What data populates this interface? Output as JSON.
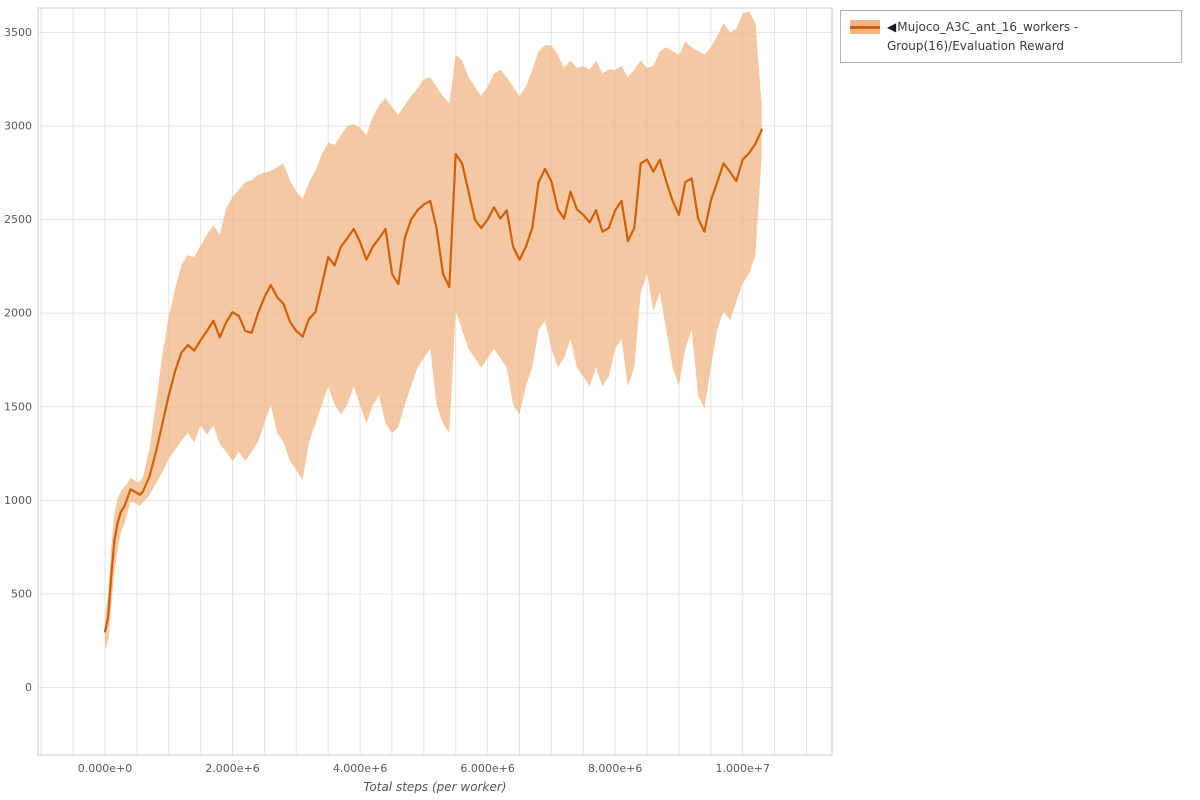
{
  "chart_data": {
    "type": "line",
    "title": "",
    "xlabel": "Total steps (per worker)",
    "ylabel": "",
    "x_scale": 1000000,
    "xlim_millions": [
      -1.05,
      11.4
    ],
    "ylim": [
      -360,
      3630
    ],
    "grid": {
      "on": true,
      "x_minor_step_millions": 0.5,
      "y_minor_step": 500,
      "color": "#e4e4e4"
    },
    "x_ticks": [
      {
        "v": 0,
        "label": "0.000e+0"
      },
      {
        "v": 2,
        "label": "2.000e+6"
      },
      {
        "v": 4,
        "label": "4.000e+6"
      },
      {
        "v": 6,
        "label": "6.000e+6"
      },
      {
        "v": 8,
        "label": "8.000e+6"
      },
      {
        "v": 10,
        "label": "1.000e+7"
      }
    ],
    "y_ticks": [
      {
        "v": 0,
        "label": "0"
      },
      {
        "v": 500,
        "label": "500"
      },
      {
        "v": 1000,
        "label": "1000"
      },
      {
        "v": 1500,
        "label": "1500"
      },
      {
        "v": 2000,
        "label": "2000"
      },
      {
        "v": 2500,
        "label": "2500"
      },
      {
        "v": 3000,
        "label": "3000"
      },
      {
        "v": 3500,
        "label": "3500"
      }
    ],
    "legend_position": "outside-top-right",
    "series": [
      {
        "name": "Mujoco_A3C_ant_16_workers - Group(16)/Evaluation Reward",
        "line_color": "#d2600a",
        "band_color": "#f0b584",
        "band_opacity": 0.75,
        "points": [
          [
            0.0,
            300,
            200,
            390
          ],
          [
            0.05,
            380,
            250,
            500
          ],
          [
            0.1,
            600,
            430,
            760
          ],
          [
            0.15,
            790,
            620,
            930
          ],
          [
            0.2,
            880,
            740,
            1010
          ],
          [
            0.25,
            940,
            830,
            1050
          ],
          [
            0.3,
            965,
            870,
            1070
          ],
          [
            0.35,
            1010,
            930,
            1090
          ],
          [
            0.4,
            1060,
            990,
            1120
          ],
          [
            0.45,
            1050,
            990,
            1110
          ],
          [
            0.5,
            1040,
            980,
            1100
          ],
          [
            0.55,
            1030,
            970,
            1100
          ],
          [
            0.6,
            1050,
            990,
            1130
          ],
          [
            0.7,
            1130,
            1030,
            1280
          ],
          [
            0.8,
            1260,
            1090,
            1520
          ],
          [
            0.9,
            1410,
            1150,
            1780
          ],
          [
            1.0,
            1560,
            1220,
            1980
          ],
          [
            1.1,
            1690,
            1270,
            2130
          ],
          [
            1.2,
            1790,
            1320,
            2260
          ],
          [
            1.3,
            1830,
            1360,
            2310
          ],
          [
            1.4,
            1800,
            1310,
            2300
          ],
          [
            1.5,
            1855,
            1400,
            2360
          ],
          [
            1.6,
            1905,
            1350,
            2420
          ],
          [
            1.7,
            1960,
            1400,
            2470
          ],
          [
            1.8,
            1870,
            1300,
            2420
          ],
          [
            1.9,
            1950,
            1260,
            2560
          ],
          [
            2.0,
            2005,
            1210,
            2620
          ],
          [
            2.1,
            1985,
            1260,
            2660
          ],
          [
            2.2,
            1905,
            1210,
            2700
          ],
          [
            2.3,
            1895,
            1260,
            2710
          ],
          [
            2.4,
            2000,
            1310,
            2740
          ],
          [
            2.5,
            2085,
            1410,
            2750
          ],
          [
            2.6,
            2150,
            1510,
            2760
          ],
          [
            2.7,
            2085,
            1360,
            2780
          ],
          [
            2.8,
            2050,
            1310,
            2800
          ],
          [
            2.9,
            1955,
            1210,
            2710
          ],
          [
            3.0,
            1905,
            1160,
            2650
          ],
          [
            3.1,
            1875,
            1110,
            2610
          ],
          [
            3.2,
            1970,
            1310,
            2700
          ],
          [
            3.3,
            2005,
            1410,
            2760
          ],
          [
            3.4,
            2150,
            1510,
            2850
          ],
          [
            3.5,
            2300,
            1610,
            2910
          ],
          [
            3.6,
            2255,
            1510,
            2900
          ],
          [
            3.7,
            2355,
            1460,
            2950
          ],
          [
            3.8,
            2400,
            1510,
            3000
          ],
          [
            3.9,
            2450,
            1610,
            3010
          ],
          [
            4.0,
            2380,
            1510,
            2990
          ],
          [
            4.1,
            2285,
            1410,
            2950
          ],
          [
            4.2,
            2355,
            1510,
            3050
          ],
          [
            4.3,
            2400,
            1560,
            3110
          ],
          [
            4.4,
            2450,
            1410,
            3150
          ],
          [
            4.5,
            2210,
            1360,
            3100
          ],
          [
            4.6,
            2155,
            1390,
            3060
          ],
          [
            4.7,
            2400,
            1510,
            3110
          ],
          [
            4.8,
            2500,
            1610,
            3160
          ],
          [
            4.9,
            2550,
            1710,
            3200
          ],
          [
            5.0,
            2580,
            1760,
            3250
          ],
          [
            5.1,
            2600,
            1810,
            3260
          ],
          [
            5.2,
            2450,
            1510,
            3210
          ],
          [
            5.3,
            2210,
            1410,
            3160
          ],
          [
            5.4,
            2140,
            1360,
            3120
          ],
          [
            5.5,
            2850,
            2010,
            3380
          ],
          [
            5.6,
            2800,
            1910,
            3350
          ],
          [
            5.7,
            2650,
            1810,
            3260
          ],
          [
            5.8,
            2500,
            1760,
            3210
          ],
          [
            5.9,
            2455,
            1710,
            3160
          ],
          [
            6.0,
            2500,
            1760,
            3210
          ],
          [
            6.1,
            2565,
            1810,
            3280
          ],
          [
            6.2,
            2505,
            1760,
            3300
          ],
          [
            6.3,
            2550,
            1710,
            3260
          ],
          [
            6.4,
            2355,
            1510,
            3210
          ],
          [
            6.5,
            2285,
            1460,
            3160
          ],
          [
            6.6,
            2355,
            1610,
            3210
          ],
          [
            6.7,
            2455,
            1710,
            3300
          ],
          [
            6.8,
            2700,
            1910,
            3400
          ],
          [
            6.9,
            2770,
            1960,
            3430
          ],
          [
            7.0,
            2705,
            1810,
            3430
          ],
          [
            7.1,
            2555,
            1710,
            3380
          ],
          [
            7.2,
            2505,
            1760,
            3310
          ],
          [
            7.3,
            2650,
            1860,
            3350
          ],
          [
            7.4,
            2555,
            1710,
            3310
          ],
          [
            7.5,
            2525,
            1660,
            3320
          ],
          [
            7.6,
            2485,
            1610,
            3300
          ],
          [
            7.7,
            2550,
            1710,
            3350
          ],
          [
            7.8,
            2435,
            1610,
            3280
          ],
          [
            7.9,
            2455,
            1660,
            3300
          ],
          [
            8.0,
            2550,
            1810,
            3300
          ],
          [
            8.1,
            2600,
            1860,
            3320
          ],
          [
            8.2,
            2385,
            1610,
            3260
          ],
          [
            8.3,
            2455,
            1710,
            3300
          ],
          [
            8.4,
            2800,
            2110,
            3350
          ],
          [
            8.5,
            2820,
            2210,
            3310
          ],
          [
            8.6,
            2755,
            2010,
            3320
          ],
          [
            8.7,
            2820,
            2110,
            3400
          ],
          [
            8.8,
            2705,
            1910,
            3420
          ],
          [
            8.9,
            2600,
            1710,
            3400
          ],
          [
            9.0,
            2525,
            1610,
            3380
          ],
          [
            9.1,
            2700,
            1810,
            3450
          ],
          [
            9.2,
            2720,
            1910,
            3420
          ],
          [
            9.3,
            2505,
            1560,
            3400
          ],
          [
            9.4,
            2435,
            1490,
            3380
          ],
          [
            9.5,
            2600,
            1710,
            3420
          ],
          [
            9.6,
            2700,
            1910,
            3480
          ],
          [
            9.7,
            2800,
            2010,
            3550
          ],
          [
            9.8,
            2755,
            1960,
            3500
          ],
          [
            9.9,
            2705,
            2060,
            3520
          ],
          [
            10.0,
            2820,
            2160,
            3600
          ],
          [
            10.1,
            2855,
            2210,
            3610
          ],
          [
            10.2,
            2905,
            2310,
            3550
          ],
          [
            10.3,
            2980,
            2850,
            3100
          ]
        ]
      }
    ]
  },
  "legend": {
    "marker": "◀",
    "label": "Mujoco_A3C_ant_16_workers - Group(16)/Evaluation Reward"
  },
  "colors": {
    "line": "#d2600a",
    "band": "#f0b584",
    "grid": "#e4e4e4",
    "plot_border": "#cccccc",
    "tick_text": "#595959",
    "axis_label_text": "#555555"
  }
}
